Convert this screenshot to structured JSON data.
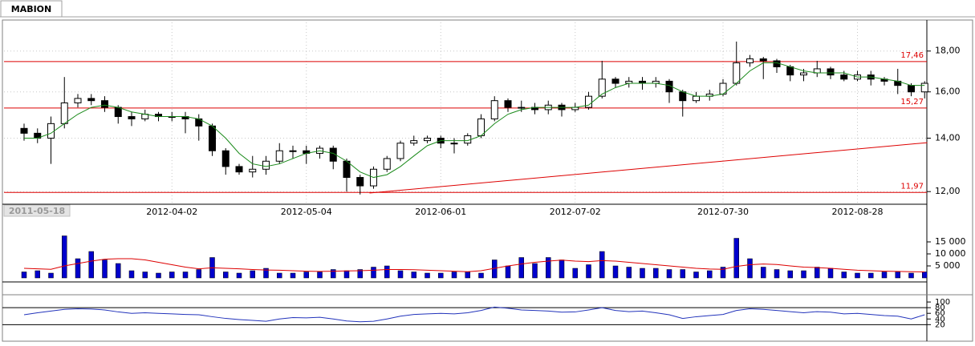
{
  "tab": "MABION",
  "chart_data": {
    "type": "candlestick",
    "start_date": "2011-05-18",
    "categories": [
      null,
      null,
      null,
      null,
      null,
      null,
      null,
      null,
      null,
      null,
      null,
      "2012-04-02",
      null,
      null,
      null,
      null,
      null,
      null,
      null,
      null,
      null,
      "2012-05-04",
      null,
      null,
      null,
      null,
      null,
      null,
      null,
      null,
      null,
      "2012-06-01",
      null,
      null,
      null,
      null,
      null,
      null,
      null,
      null,
      null,
      "2012-07-02",
      null,
      null,
      null,
      null,
      null,
      null,
      null,
      null,
      null,
      null,
      "2012-07-30",
      null,
      null,
      null,
      null,
      null,
      null,
      null,
      null,
      null,
      "2012-08-28",
      null,
      null,
      null,
      null,
      null
    ],
    "open": [
      14.4,
      14.2,
      14.0,
      14.6,
      15.5,
      15.7,
      15.6,
      15.3,
      14.9,
      14.8,
      15.0,
      14.9,
      14.9,
      14.8,
      14.5,
      13.5,
      12.9,
      12.7,
      12.8,
      13.1,
      13.5,
      13.5,
      13.4,
      13.6,
      13.1,
      12.5,
      12.2,
      12.8,
      13.2,
      13.8,
      13.9,
      14.0,
      13.8,
      13.8,
      14.1,
      14.8,
      15.6,
      15.3,
      15.3,
      15.2,
      15.4,
      15.2,
      15.3,
      15.8,
      16.6,
      16.4,
      16.5,
      16.4,
      16.5,
      16.0,
      15.6,
      15.8,
      15.9,
      16.4,
      17.4,
      17.6,
      17.5,
      17.2,
      16.8,
      16.9,
      17.1,
      16.8,
      16.6,
      16.8,
      16.6,
      16.5,
      16.3,
      16.0
    ],
    "high": [
      14.6,
      14.4,
      14.9,
      16.7,
      15.9,
      15.9,
      15.8,
      15.4,
      15.1,
      15.2,
      15.1,
      15.1,
      15.1,
      15.0,
      14.6,
      13.6,
      13.0,
      13.3,
      13.3,
      13.8,
      13.7,
      13.7,
      13.7,
      13.7,
      13.2,
      12.6,
      12.9,
      13.3,
      13.9,
      14.1,
      14.1,
      14.1,
      14.0,
      14.2,
      15.0,
      15.8,
      15.7,
      15.6,
      15.5,
      15.6,
      15.5,
      15.5,
      16.0,
      17.5,
      16.7,
      16.7,
      16.7,
      16.7,
      16.6,
      16.1,
      16.0,
      16.1,
      16.6,
      18.5,
      17.8,
      17.7,
      17.6,
      17.3,
      17.1,
      17.5,
      17.2,
      17.0,
      17.0,
      17.0,
      16.7,
      17.1,
      16.4,
      16.5
    ],
    "low": [
      13.9,
      13.8,
      13.0,
      14.4,
      15.3,
      15.4,
      15.1,
      14.6,
      14.5,
      14.7,
      14.7,
      14.7,
      14.2,
      13.9,
      13.3,
      12.6,
      12.6,
      12.5,
      12.6,
      13.0,
      13.2,
      13.0,
      13.2,
      12.8,
      12.0,
      11.9,
      12.1,
      12.7,
      13.1,
      13.7,
      13.8,
      13.6,
      13.4,
      13.7,
      14.0,
      14.7,
      15.1,
      15.1,
      15.0,
      15.0,
      14.9,
      15.1,
      15.2,
      15.7,
      16.2,
      16.2,
      16.1,
      16.2,
      15.5,
      14.9,
      15.5,
      15.6,
      15.8,
      16.3,
      17.2,
      16.6,
      16.9,
      16.5,
      16.5,
      16.7,
      16.6,
      16.5,
      16.5,
      16.3,
      16.3,
      15.9,
      15.8,
      15.7
    ],
    "close": [
      14.2,
      14.0,
      14.6,
      15.5,
      15.7,
      15.6,
      15.3,
      14.9,
      14.8,
      15.0,
      14.9,
      14.9,
      14.8,
      14.5,
      13.5,
      12.9,
      12.7,
      12.8,
      13.1,
      13.5,
      13.5,
      13.4,
      13.6,
      13.1,
      12.5,
      12.2,
      12.8,
      13.2,
      13.8,
      13.9,
      14.0,
      13.8,
      13.8,
      14.1,
      14.8,
      15.6,
      15.3,
      15.3,
      15.2,
      15.4,
      15.2,
      15.3,
      15.8,
      16.6,
      16.4,
      16.5,
      16.4,
      16.5,
      16.0,
      15.6,
      15.8,
      15.9,
      16.4,
      17.4,
      17.6,
      17.5,
      17.2,
      16.8,
      16.9,
      17.1,
      16.8,
      16.6,
      16.8,
      16.6,
      16.5,
      16.3,
      16.0,
      16.4
    ],
    "ma": [
      14.0,
      14.0,
      14.2,
      14.6,
      15.0,
      15.3,
      15.4,
      15.3,
      15.1,
      15.0,
      14.9,
      14.9,
      14.9,
      14.8,
      14.5,
      14.0,
      13.4,
      13.0,
      12.9,
      13.0,
      13.2,
      13.4,
      13.5,
      13.4,
      13.1,
      12.7,
      12.5,
      12.6,
      12.9,
      13.3,
      13.7,
      13.9,
      13.9,
      13.9,
      14.1,
      14.6,
      15.0,
      15.2,
      15.3,
      15.3,
      15.3,
      15.3,
      15.4,
      15.9,
      16.2,
      16.4,
      16.4,
      16.4,
      16.3,
      16.0,
      15.8,
      15.8,
      15.9,
      16.4,
      17.0,
      17.4,
      17.4,
      17.2,
      17.0,
      16.9,
      16.9,
      16.9,
      16.7,
      16.7,
      16.6,
      16.5,
      16.3,
      16.3
    ],
    "ma_color": "#1a8a1a",
    "log_scale": true,
    "ylim": [
      11.57,
      19.55
    ],
    "yticks": [
      {
        "value": 12,
        "label": "12,00"
      },
      {
        "value": 14,
        "label": "14,00"
      },
      {
        "value": 16,
        "label": "16,00"
      },
      {
        "value": 18,
        "label": "18,00"
      }
    ],
    "grid": true,
    "hlines": [
      {
        "value": 17.46,
        "label": "17,46"
      },
      {
        "value": 15.27,
        "label": "15,27"
      },
      {
        "value": 11.97,
        "label": "11,97"
      }
    ],
    "line_color": "#dd0000",
    "trendline": {
      "x": [
        25.7,
        67.2
      ],
      "values": [
        11.95,
        13.82
      ]
    },
    "volume": {
      "values": [
        2500,
        3000,
        2000,
        17500,
        8000,
        11000,
        7500,
        6000,
        3000,
        2500,
        2000,
        2500,
        2500,
        3500,
        8500,
        2500,
        2000,
        3000,
        4000,
        2000,
        2000,
        2500,
        2500,
        3500,
        3000,
        3500,
        4500,
        5000,
        3000,
        2500,
        2000,
        2000,
        2500,
        2500,
        2000,
        7500,
        5000,
        8500,
        6000,
        8500,
        7500,
        4000,
        5500,
        11000,
        5000,
        4500,
        4000,
        4000,
        3500,
        3500,
        2500,
        3000,
        4500,
        16500,
        8000,
        4500,
        3500,
        3000,
        3000,
        4500,
        4000,
        2500,
        2000,
        2000,
        2500,
        2500,
        2000,
        2500
      ],
      "ma": [
        4000,
        3800,
        3600,
        5000,
        6000,
        7000,
        7800,
        8000,
        8000,
        7500,
        6500,
        5500,
        4500,
        3800,
        4200,
        4000,
        3800,
        3500,
        3300,
        3200,
        3000,
        2800,
        2700,
        2800,
        2900,
        3000,
        3200,
        3500,
        3500,
        3400,
        3200,
        3000,
        2800,
        2600,
        3000,
        4000,
        5000,
        5800,
        6500,
        7000,
        7400,
        7000,
        6800,
        7200,
        7000,
        6500,
        6000,
        5500,
        5000,
        4500,
        4000,
        3700,
        3600,
        4800,
        5500,
        5800,
        5600,
        5000,
        4500,
        4300,
        4000,
        3600,
        3200,
        3000,
        2800,
        2700,
        2600,
        2500
      ],
      "color": "#0000cc",
      "ma_color": "#dd0000",
      "ylim": [
        0,
        19000
      ],
      "yticks": [
        {
          "value": 5000,
          "label": "5 000"
        },
        {
          "value": 10000,
          "label": "10 000"
        },
        {
          "value": 15000,
          "label": "15 000"
        }
      ]
    },
    "oscillator": {
      "values": [
        55,
        62,
        68,
        74,
        76,
        75,
        72,
        65,
        60,
        62,
        60,
        58,
        56,
        55,
        48,
        42,
        38,
        35,
        32,
        40,
        45,
        44,
        46,
        40,
        33,
        30,
        32,
        40,
        50,
        56,
        58,
        60,
        58,
        62,
        70,
        82,
        78,
        72,
        70,
        68,
        64,
        65,
        72,
        80,
        70,
        66,
        68,
        62,
        55,
        42,
        48,
        52,
        56,
        70,
        76,
        74,
        70,
        66,
        62,
        66,
        64,
        58,
        60,
        56,
        52,
        50,
        40,
        55
      ],
      "color": "#2233bb",
      "levels": [
        80,
        20
      ],
      "ylim": [
        -30,
        120
      ],
      "yticks": [
        20,
        40,
        60,
        80,
        100
      ]
    }
  }
}
